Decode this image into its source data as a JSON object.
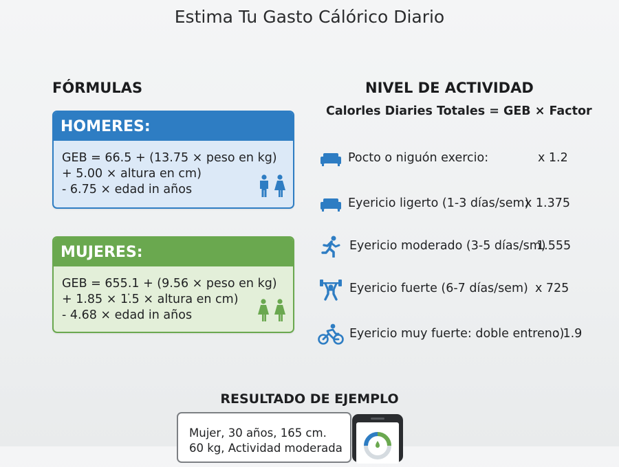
{
  "header": {
    "clipped_title": "",
    "subtitle": "Estima Tu Gasto Cálórico Diario"
  },
  "formulas": {
    "heading": "FÓRMULAS",
    "men": {
      "title": "HOMERES:",
      "lines": [
        "GEB = 66.5 + (13.75 × peso en kg)",
        "+ 5.00 × altura en cm)",
        "- 6.75 × edad in años"
      ]
    },
    "women": {
      "title": "MUJERES:",
      "lines": [
        "GEB = 655.1 + (9.56 × peso en kg)",
        "+ 1.85 × 1.̇5 × altura en cm)",
        "- 4.68 × edad in años"
      ]
    }
  },
  "activity": {
    "heading": "NIVEL DE ACTIVIDAD",
    "equation": "Calorles Diaries Totales = GEB × Factor",
    "levels": [
      {
        "icon": "sofa-icon",
        "label": "Pocto o niguón exercio:",
        "factor": "x 1.2"
      },
      {
        "icon": "sofa-icon",
        "label": "Eyericio ligerto (1-3 días/sem)",
        "factor": "x 1.375"
      },
      {
        "icon": "runner-icon",
        "label": "Eyericio moderado (3-5 días/sm)",
        "factor": "1.555"
      },
      {
        "icon": "weightlifter-icon",
        "label": "Eyericio fuerte (6-7 días/sem)",
        "factor": "x 725"
      },
      {
        "icon": "cyclist-icon",
        "label": "Eyericio muy fuerte: doble entreno)",
        "factor": ": 1.9"
      }
    ]
  },
  "result": {
    "heading": "RESULTADO DE EJEMPLO",
    "lines": [
      "Mujer, 30 años, 165 cm.",
      "60 kg, Actividad moderada"
    ]
  },
  "colors": {
    "men_accent": "#2e7dc3",
    "women_accent": "#6aa84f",
    "icon_blue": "#2e7dc3"
  }
}
